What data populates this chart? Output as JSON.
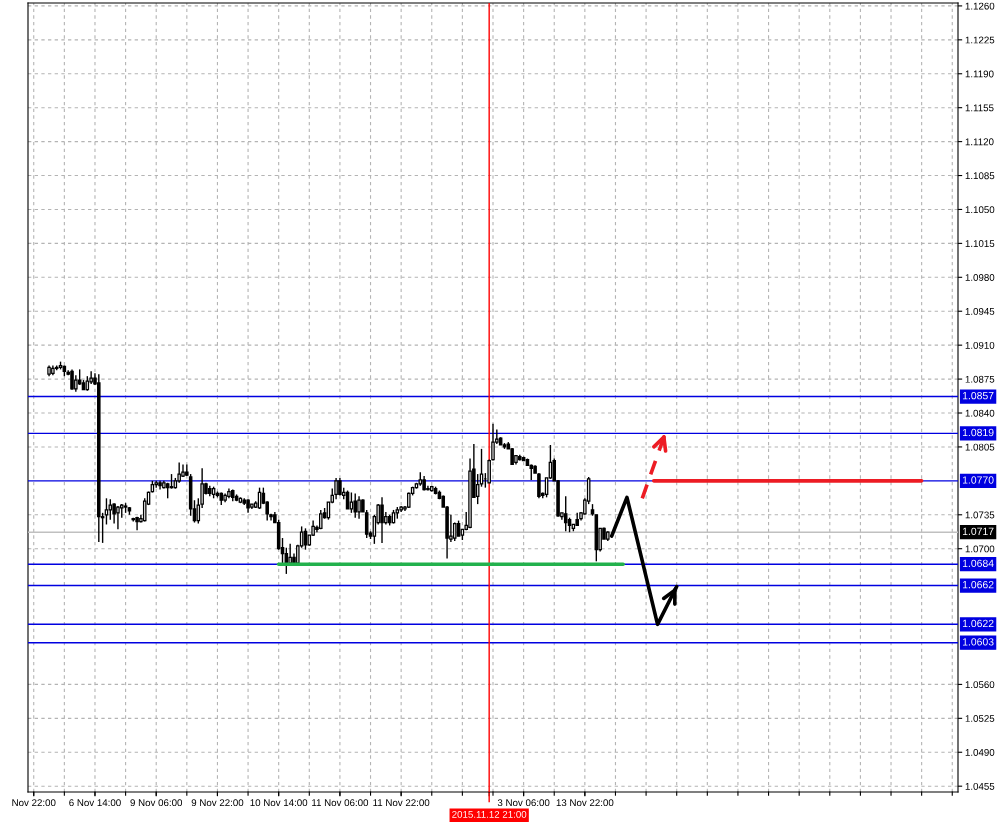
{
  "chart_data": {
    "type": "candlestick",
    "color": "#000000",
    "categories": [
      null,
      "Nov 22:00",
      null,
      null,
      null,
      null,
      null,
      null,
      null,
      null,
      null,
      null,
      null,
      null,
      null,
      null,
      null,
      "6 Nov 14:00",
      null,
      null,
      null,
      null,
      null,
      null,
      null,
      null,
      null,
      null,
      null,
      null,
      null,
      null,
      null,
      "9 Nov 06:00",
      null,
      null,
      null,
      null,
      null,
      null,
      null,
      null,
      null,
      null,
      null,
      null,
      null,
      null,
      null,
      "9 Nov 22:00",
      null,
      null,
      null,
      null,
      null,
      null,
      null,
      null,
      null,
      null,
      null,
      null,
      null,
      null,
      null,
      "10 Nov 14:00",
      null,
      null,
      null,
      null,
      null,
      null,
      null,
      null,
      null,
      null,
      null,
      null,
      null,
      null,
      null,
      "11 Nov 06:00",
      null,
      null,
      null,
      null,
      null,
      null,
      null,
      null,
      null,
      null,
      null,
      null,
      null,
      null,
      null,
      "11 Nov 22:00",
      null,
      null,
      null,
      null,
      null,
      null,
      null,
      null,
      null,
      null,
      null,
      null,
      null,
      null,
      null,
      null,
      null,
      null,
      null,
      null,
      null,
      null,
      "2015.11.12 21:00",
      null,
      null,
      null,
      null,
      null,
      null,
      null,
      null,
      "3 Nov 06:00",
      null,
      null,
      null,
      null,
      null,
      null,
      null,
      null,
      null,
      null,
      null,
      null,
      null,
      null,
      null,
      "13 Nov 22:00",
      null,
      null,
      null,
      null,
      null,
      null,
      null,
      null,
      null,
      null,
      null,
      null,
      null,
      null,
      null,
      null,
      null,
      null,
      null,
      null,
      null,
      null,
      null,
      null,
      null,
      null,
      null,
      null,
      null,
      null,
      null,
      null,
      null,
      null,
      null,
      null,
      null,
      null,
      null,
      null,
      null,
      null,
      null,
      null,
      null,
      null,
      null,
      null,
      null,
      null,
      null,
      null,
      null,
      null,
      null,
      null,
      null,
      null,
      null,
      null,
      null,
      null,
      null,
      null,
      null,
      null,
      null,
      null,
      null,
      null,
      null,
      null,
      null,
      null,
      null,
      null,
      null,
      null,
      null,
      null,
      null,
      null,
      null,
      null,
      null,
      null,
      null,
      null,
      null,
      null,
      null,
      null,
      null,
      null,
      null,
      null,
      null
    ],
    "ohlc": [
      null,
      null,
      null,
      null,
      null,
      [
        1.088,
        1.0889,
        1.0878,
        1.0887
      ],
      [
        1.0881,
        1.0889,
        1.0879,
        1.0886
      ],
      [
        1.0886,
        1.0889,
        1.0884,
        1.0887
      ],
      [
        1.0887,
        1.0893,
        1.0885,
        1.0889
      ],
      [
        1.0888,
        1.0889,
        1.0878,
        1.0883
      ],
      [
        1.0882,
        1.0884,
        1.0879,
        1.088
      ],
      [
        1.0883,
        1.0885,
        1.0864,
        1.0865
      ],
      [
        1.0865,
        1.0879,
        1.0862,
        1.0874
      ],
      [
        1.0874,
        1.0885,
        1.0869,
        1.087
      ],
      [
        1.0871,
        1.0874,
        1.0864,
        1.0864
      ],
      [
        1.0864,
        1.0878,
        1.0863,
        1.0873
      ],
      [
        1.0872,
        1.0883,
        1.087,
        1.0876
      ],
      [
        1.0876,
        1.0881,
        1.0869,
        1.087
      ],
      [
        1.0871,
        1.088,
        1.0707,
        1.0733
      ],
      [
        1.0733,
        1.0737,
        1.0706,
        1.0732
      ],
      [
        1.0735,
        1.0752,
        1.0725,
        1.074
      ],
      [
        1.074,
        1.0751,
        1.073,
        1.0745
      ],
      [
        1.0746,
        1.0747,
        1.0726,
        1.0736
      ],
      [
        1.0737,
        1.0744,
        1.072,
        1.0743
      ],
      [
        1.0742,
        1.0746,
        1.0732,
        1.0745
      ],
      [
        1.0744,
        1.0747,
        1.0737,
        1.0743
      ],
      [
        1.0742,
        1.0743,
        1.0735,
        1.0739
      ],
      [
        1.0731,
        1.0732,
        1.0728,
        1.073
      ],
      [
        1.0732,
        1.0733,
        1.0719,
        1.0728
      ],
      [
        1.0728,
        1.0735,
        1.0727,
        1.0731
      ],
      [
        1.0729,
        1.0752,
        1.0728,
        1.0749
      ],
      [
        1.0746,
        1.0759,
        1.0745,
        1.0758
      ],
      [
        1.0759,
        1.077,
        1.0758,
        1.0766
      ],
      [
        1.0766,
        1.077,
        1.0763,
        1.0768
      ],
      [
        1.0768,
        1.077,
        1.0761,
        1.0765
      ],
      [
        1.0763,
        1.077,
        1.0762,
        1.0768
      ],
      [
        1.0767,
        1.0768,
        1.0752,
        1.0763
      ],
      [
        1.0764,
        1.0777,
        1.0762,
        1.0763
      ],
      [
        1.0763,
        1.0773,
        1.0762,
        1.077
      ],
      [
        1.077,
        1.0789,
        1.0768,
        1.0777
      ],
      [
        1.0775,
        1.0787,
        1.0774,
        1.0779
      ],
      [
        1.0779,
        1.0787,
        1.0775,
        1.0776
      ],
      [
        1.0774,
        1.0777,
        1.0734,
        1.0741
      ],
      [
        1.0741,
        1.075,
        1.0727,
        1.0729
      ],
      [
        1.0729,
        1.0752,
        1.0726,
        1.0745
      ],
      [
        1.0746,
        1.0783,
        1.0742,
        1.0767
      ],
      [
        1.0767,
        1.0768,
        1.0756,
        1.0757
      ],
      [
        1.0762,
        1.0765,
        1.0754,
        1.0757
      ],
      [
        1.0756,
        1.0764,
        1.0752,
        1.0762
      ],
      [
        1.0757,
        1.0759,
        1.0753,
        1.0755
      ],
      [
        1.0757,
        1.0758,
        1.0745,
        1.075
      ],
      [
        1.075,
        1.0757,
        1.0748,
        1.0755
      ],
      [
        1.0754,
        1.0762,
        1.0752,
        1.0759
      ],
      [
        1.076,
        1.0761,
        1.0749,
        1.0753
      ],
      [
        1.0754,
        1.0756,
        1.0749,
        1.075
      ],
      [
        1.0748,
        1.0753,
        1.0747,
        1.0752
      ],
      [
        1.075,
        1.0752,
        1.0745,
        1.0747
      ],
      [
        1.075,
        1.0751,
        1.0737,
        1.0742
      ],
      [
        1.0743,
        1.0746,
        1.0741,
        1.0746
      ],
      [
        1.0743,
        1.0749,
        1.0742,
        1.0747
      ],
      [
        1.0742,
        1.0763,
        1.0741,
        1.0758
      ],
      [
        1.0757,
        1.0763,
        1.0746,
        1.0747
      ],
      [
        1.0748,
        1.0749,
        1.0729,
        1.0736
      ],
      [
        1.0735,
        1.0736,
        1.0729,
        1.0733
      ],
      [
        1.0735,
        1.0738,
        1.0727,
        1.0727
      ],
      [
        1.0727,
        1.073,
        1.0699,
        1.07
      ],
      [
        1.0701,
        1.0711,
        1.0685,
        1.0695
      ],
      [
        1.0695,
        1.0701,
        1.0674,
        1.0685
      ],
      [
        1.0685,
        1.0705,
        1.0685,
        1.0691
      ],
      [
        1.0691,
        1.0695,
        1.0684,
        1.0685
      ],
      [
        1.0685,
        1.0704,
        1.0684,
        1.0703
      ],
      [
        1.0703,
        1.0723,
        1.0701,
        1.0717
      ],
      [
        1.0718,
        1.0721,
        1.0699,
        1.0704
      ],
      [
        1.0704,
        1.0714,
        1.0703,
        1.0714
      ],
      [
        1.0714,
        1.0729,
        1.0713,
        1.0723
      ],
      [
        1.0722,
        1.0724,
        1.0717,
        1.072
      ],
      [
        1.0721,
        1.074,
        1.072,
        1.0736
      ],
      [
        1.0737,
        1.0742,
        1.0731,
        1.0732
      ],
      [
        1.0732,
        1.0748,
        1.073,
        1.0748
      ],
      [
        1.0748,
        1.0762,
        1.0747,
        1.0755
      ],
      [
        1.0756,
        1.0773,
        1.0751,
        1.077
      ],
      [
        1.077,
        1.0773,
        1.0755,
        1.0756
      ],
      [
        1.0755,
        1.0763,
        1.0751,
        1.0758
      ],
      [
        1.0758,
        1.076,
        1.0741,
        1.0741
      ],
      [
        1.0741,
        1.0758,
        1.0737,
        1.0748
      ],
      [
        1.0749,
        1.0757,
        1.0732,
        1.0738
      ],
      [
        1.0738,
        1.0754,
        1.0731,
        1.075
      ],
      [
        1.075,
        1.0751,
        1.0738,
        1.0738
      ],
      [
        1.0737,
        1.074,
        1.0711,
        1.0715
      ],
      [
        1.0716,
        1.0718,
        1.071,
        1.0713
      ],
      [
        1.0713,
        1.0735,
        1.0705,
        1.0733
      ],
      [
        1.0727,
        1.0746,
        1.0725,
        1.0745
      ],
      [
        1.0745,
        1.0753,
        1.0706,
        1.0727
      ],
      [
        1.0727,
        1.0738,
        1.0725,
        1.0733
      ],
      [
        1.0733,
        1.0735,
        1.0724,
        1.0727
      ],
      [
        1.0727,
        1.074,
        1.0726,
        1.0737
      ],
      [
        1.0737,
        1.0743,
        1.0731,
        1.074
      ],
      [
        1.074,
        1.0744,
        1.0738,
        1.0743
      ],
      [
        1.0741,
        1.0744,
        1.0739,
        1.0743
      ],
      [
        1.0743,
        1.0758,
        1.0742,
        1.0757
      ],
      [
        1.0757,
        1.0764,
        1.0755,
        1.0763
      ],
      [
        1.0763,
        1.0768,
        1.0762,
        1.0767
      ],
      [
        1.0767,
        1.0779,
        1.0765,
        1.0771
      ],
      [
        1.0771,
        1.0775,
        1.076,
        1.0761
      ],
      [
        1.0762,
        1.0765,
        1.076,
        1.0761
      ],
      [
        1.076,
        1.0765,
        1.0759,
        1.0764
      ],
      [
        1.0762,
        1.0764,
        1.0756,
        1.0757
      ],
      [
        1.0758,
        1.076,
        1.0751,
        1.0752
      ],
      [
        1.0754,
        1.0755,
        1.0743,
        1.0743
      ],
      [
        1.0743,
        1.0744,
        1.069,
        1.0711
      ],
      [
        1.071,
        1.0735,
        1.0707,
        1.0713
      ],
      [
        1.0711,
        1.0727,
        1.0708,
        1.0726
      ],
      [
        1.0726,
        1.0729,
        1.0713,
        1.0713
      ],
      [
        1.0714,
        1.072,
        1.0709,
        1.072
      ],
      [
        1.072,
        1.0738,
        1.0719,
        1.0724
      ],
      [
        1.0722,
        1.0793,
        1.0721,
        1.078
      ],
      [
        1.0782,
        1.0808,
        1.0753,
        1.0753
      ],
      [
        1.0754,
        1.0777,
        1.0746,
        1.0766
      ],
      [
        1.0767,
        1.0803,
        1.0764,
        1.0777
      ],
      [
        1.0772,
        1.0778,
        1.0763,
        1.0772
      ],
      [
        1.0768,
        1.0792,
        1.0768,
        1.0791
      ],
      [
        1.0792,
        1.0829,
        1.0791,
        1.081
      ],
      [
        1.081,
        1.0823,
        1.0808,
        1.0813
      ],
      [
        1.0814,
        1.0815,
        1.0807,
        1.0807
      ],
      [
        1.0807,
        1.0809,
        1.0803,
        1.0805
      ],
      [
        1.0808,
        1.081,
        1.0803,
        1.0803
      ],
      [
        1.0803,
        1.0804,
        1.0787,
        1.0787
      ],
      [
        1.0789,
        1.0796,
        1.0787,
        1.0796
      ],
      [
        1.0795,
        1.0797,
        1.0791,
        1.0792
      ],
      [
        1.0794,
        1.0795,
        1.0791,
        1.0791
      ],
      [
        1.0792,
        1.0793,
        1.0786,
        1.0786
      ],
      [
        1.0786,
        1.0787,
        1.0771,
        1.0783
      ],
      [
        1.0785,
        1.0786,
        1.0778,
        1.0778
      ],
      [
        1.0777,
        1.0778,
        1.0752,
        1.0754
      ],
      [
        1.0757,
        1.0758,
        1.0752,
        1.0755
      ],
      [
        1.0756,
        1.0773,
        1.0753,
        1.0773
      ],
      [
        1.0773,
        1.0807,
        1.0772,
        1.0789
      ],
      [
        1.0791,
        1.0793,
        1.077,
        1.077
      ],
      [
        1.077,
        1.0771,
        1.0733,
        1.0734
      ],
      [
        1.0733,
        1.0737,
        1.073,
        1.0737
      ],
      [
        1.0736,
        1.0754,
        1.0718,
        1.0727
      ],
      [
        1.073,
        1.0732,
        1.0717,
        1.0724
      ],
      [
        1.0721,
        1.0725,
        1.0718,
        1.0725
      ],
      [
        1.073,
        1.0737,
        1.0724,
        1.0724
      ],
      [
        1.0731,
        1.0738,
        1.0729,
        1.0737
      ],
      [
        1.0736,
        1.0752,
        1.0735,
        1.075
      ],
      [
        1.0749,
        1.0774,
        1.0746,
        1.0772
      ],
      [
        1.074,
        1.0746,
        1.0734,
        1.0736
      ],
      [
        1.0735,
        1.0735,
        1.0687,
        1.0699
      ],
      [
        1.0699,
        1.0721,
        1.0697,
        1.0721
      ],
      [
        1.0721,
        1.0722,
        1.071,
        1.071
      ],
      [
        1.071,
        1.0718,
        1.0708,
        1.0717
      ],
      null,
      null,
      null,
      null,
      null,
      null,
      null,
      null,
      null,
      null,
      null,
      null,
      null,
      null,
      null,
      null,
      null,
      null,
      null,
      null,
      null,
      null,
      null,
      null,
      null,
      null,
      null,
      null,
      null,
      null,
      null,
      null,
      null,
      null,
      null,
      null,
      null,
      null,
      null,
      null,
      null,
      null,
      null,
      null,
      null,
      null,
      null,
      null,
      null,
      null,
      null,
      null,
      null,
      null,
      null,
      null,
      null,
      null,
      null,
      null,
      null,
      null,
      null,
      null,
      null,
      null,
      null,
      null,
      null,
      null,
      null,
      null,
      null,
      null,
      null,
      null,
      null,
      null,
      null,
      null,
      null,
      null,
      null,
      null,
      null,
      null,
      null,
      null,
      null,
      null,
      null
    ],
    "series": [
      {
        "type": "line",
        "color": "#22b14c",
        "values": [
          null,
          null,
          null,
          null,
          null,
          null,
          null,
          null,
          null,
          null,
          null,
          null,
          null,
          null,
          null,
          null,
          null,
          null,
          null,
          null,
          null,
          null,
          null,
          null,
          null,
          null,
          null,
          null,
          null,
          null,
          null,
          null,
          null,
          null,
          null,
          null,
          null,
          null,
          null,
          null,
          null,
          null,
          null,
          null,
          null,
          null,
          null,
          null,
          null,
          null,
          null,
          null,
          null,
          null,
          null,
          null,
          null,
          null,
          null,
          null,
          null,
          null,
          null,
          null,
          null,
          1.0684,
          null,
          null,
          null,
          null,
          null,
          null,
          null,
          null,
          null,
          null,
          null,
          null,
          null,
          null,
          null,
          null,
          null,
          null,
          null,
          null,
          null,
          null,
          null,
          null,
          null,
          null,
          null,
          null,
          null,
          null,
          null,
          null,
          null,
          null,
          null,
          null,
          null,
          null,
          null,
          null,
          null,
          null,
          null,
          null,
          null,
          null,
          null,
          null,
          null,
          null,
          null,
          null,
          null,
          null,
          null,
          null,
          null,
          null,
          null,
          null,
          null,
          null,
          null,
          null,
          null,
          null,
          null,
          null,
          null,
          null,
          null,
          null,
          null,
          null,
          null,
          null,
          null,
          null,
          null,
          null,
          null,
          null,
          null,
          null,
          null,
          null,
          null,
          null,
          null,
          1.0684,
          null,
          null,
          null,
          null,
          null,
          null,
          null,
          null,
          null,
          null,
          null,
          null,
          null,
          null,
          null,
          null,
          null,
          null,
          null,
          null,
          null,
          null,
          null,
          null,
          null,
          null,
          null,
          null,
          null,
          null,
          null,
          null,
          null,
          null,
          null,
          null,
          null,
          null,
          null,
          null,
          null,
          null,
          null,
          null,
          null,
          null,
          null,
          null,
          null,
          null,
          null,
          null,
          null,
          null,
          null,
          null,
          null,
          null,
          null,
          null,
          null,
          null,
          null,
          null,
          null,
          null,
          null,
          null,
          null,
          null,
          null,
          null,
          null,
          null,
          null,
          null,
          null,
          null,
          null,
          null,
          null,
          null,
          null,
          null,
          null,
          null,
          null
        ]
      },
      {
        "type": "line",
        "color": "#ed1c24",
        "values": [
          null,
          null,
          null,
          null,
          null,
          null,
          null,
          null,
          null,
          null,
          null,
          null,
          null,
          null,
          null,
          null,
          null,
          null,
          null,
          null,
          null,
          null,
          null,
          null,
          null,
          null,
          null,
          null,
          null,
          null,
          null,
          null,
          null,
          null,
          null,
          null,
          null,
          null,
          null,
          null,
          null,
          null,
          null,
          null,
          null,
          null,
          null,
          null,
          null,
          null,
          null,
          null,
          null,
          null,
          null,
          null,
          null,
          null,
          null,
          null,
          null,
          null,
          null,
          null,
          null,
          null,
          null,
          null,
          null,
          null,
          null,
          null,
          null,
          null,
          null,
          null,
          null,
          null,
          null,
          null,
          null,
          null,
          null,
          null,
          null,
          null,
          null,
          null,
          null,
          null,
          null,
          null,
          null,
          null,
          null,
          null,
          null,
          null,
          null,
          null,
          null,
          null,
          null,
          null,
          null,
          null,
          null,
          null,
          null,
          null,
          null,
          null,
          null,
          null,
          null,
          null,
          null,
          null,
          null,
          null,
          null,
          null,
          null,
          null,
          null,
          null,
          null,
          null,
          null,
          null,
          null,
          null,
          null,
          null,
          null,
          null,
          null,
          null,
          null,
          null,
          null,
          null,
          null,
          null,
          null,
          null,
          null,
          null,
          null,
          null,
          null,
          null,
          null,
          null,
          null,
          null,
          null,
          null,
          null,
          null,
          null,
          null,
          null,
          1.077,
          null,
          null,
          null,
          null,
          null,
          null,
          null,
          null,
          null,
          null,
          null,
          null,
          null,
          null,
          null,
          null,
          null,
          null,
          null,
          null,
          null,
          null,
          null,
          null,
          null,
          null,
          null,
          null,
          null,
          null,
          null,
          null,
          null,
          null,
          null,
          null,
          null,
          null,
          null,
          null,
          null,
          null,
          null,
          null,
          null,
          null,
          null,
          null,
          null,
          null,
          null,
          null,
          null,
          null,
          null,
          null,
          null,
          null,
          null,
          null,
          null,
          null,
          null,
          null,
          null,
          null,
          null,
          null,
          null,
          1.077,
          null,
          null,
          null,
          null,
          null,
          null,
          null,
          null,
          null
        ]
      },
      {
        "type": "line",
        "color": "#000000",
        "line_style": "solid",
        "values": [
          null,
          null,
          null,
          null,
          null,
          null,
          null,
          null,
          null,
          null,
          null,
          null,
          null,
          null,
          null,
          null,
          null,
          null,
          null,
          null,
          null,
          null,
          null,
          null,
          null,
          null,
          null,
          null,
          null,
          null,
          null,
          null,
          null,
          null,
          null,
          null,
          null,
          null,
          null,
          null,
          null,
          null,
          null,
          null,
          null,
          null,
          null,
          null,
          null,
          null,
          null,
          null,
          null,
          null,
          null,
          null,
          null,
          null,
          null,
          null,
          null,
          null,
          null,
          null,
          null,
          null,
          null,
          null,
          null,
          null,
          null,
          null,
          null,
          null,
          null,
          null,
          null,
          null,
          null,
          null,
          null,
          null,
          null,
          null,
          null,
          null,
          null,
          null,
          null,
          null,
          null,
          null,
          null,
          null,
          null,
          null,
          null,
          null,
          null,
          null,
          null,
          null,
          null,
          null,
          null,
          null,
          null,
          null,
          null,
          null,
          null,
          null,
          null,
          null,
          null,
          null,
          null,
          null,
          null,
          null,
          null,
          null,
          null,
          null,
          null,
          null,
          null,
          null,
          null,
          null,
          null,
          null,
          null,
          null,
          null,
          null,
          null,
          null,
          null,
          null,
          null,
          null,
          null,
          null,
          null,
          null,
          null,
          null,
          null,
          null,
          null,
          null,
          1.0713,
          null,
          null,
          null,
          1.0753,
          null,
          null,
          null,
          null,
          null,
          null,
          null,
          1.0622,
          null,
          null,
          null,
          null,
          1.0661,
          null,
          null,
          null,
          null,
          null,
          null,
          null,
          null,
          null,
          null,
          null,
          null,
          null,
          null,
          null,
          null,
          null,
          null,
          null,
          null,
          null,
          null,
          null,
          null,
          null,
          null,
          null,
          null,
          null,
          null,
          null,
          null,
          null,
          null,
          null,
          null,
          null,
          null,
          null,
          null,
          null,
          null,
          null,
          null,
          null,
          null,
          null,
          null,
          null,
          null,
          null,
          null,
          null,
          null,
          null,
          null,
          null,
          null,
          null,
          null,
          null,
          null,
          null,
          null,
          null,
          null,
          null,
          null,
          null,
          null,
          null,
          null,
          null
        ]
      },
      {
        "type": "line",
        "color": "#ed1c24",
        "line_style": "dashed",
        "values": [
          null,
          null,
          null,
          null,
          null,
          null,
          null,
          null,
          null,
          null,
          null,
          null,
          null,
          null,
          null,
          null,
          null,
          null,
          null,
          null,
          null,
          null,
          null,
          null,
          null,
          null,
          null,
          null,
          null,
          null,
          null,
          null,
          null,
          null,
          null,
          null,
          null,
          null,
          null,
          null,
          null,
          null,
          null,
          null,
          null,
          null,
          null,
          null,
          null,
          null,
          null,
          null,
          null,
          null,
          null,
          null,
          null,
          null,
          null,
          null,
          null,
          null,
          null,
          null,
          null,
          null,
          null,
          null,
          null,
          null,
          null,
          null,
          null,
          null,
          null,
          null,
          null,
          null,
          null,
          null,
          null,
          null,
          null,
          null,
          null,
          null,
          null,
          null,
          null,
          null,
          null,
          null,
          null,
          null,
          null,
          null,
          null,
          null,
          null,
          null,
          null,
          null,
          null,
          null,
          null,
          null,
          null,
          null,
          null,
          null,
          null,
          null,
          null,
          null,
          null,
          null,
          null,
          null,
          null,
          null,
          null,
          null,
          null,
          null,
          null,
          null,
          null,
          null,
          null,
          null,
          null,
          null,
          null,
          null,
          null,
          null,
          null,
          null,
          null,
          null,
          null,
          null,
          null,
          null,
          null,
          null,
          null,
          null,
          null,
          null,
          null,
          null,
          null,
          null,
          null,
          null,
          null,
          null,
          null,
          null,
          1.0752,
          null,
          null,
          null,
          null,
          null,
          1.0819,
          null,
          null,
          null,
          null,
          null,
          null,
          null,
          null,
          null,
          null,
          null,
          null,
          null,
          null,
          null,
          null,
          null,
          null,
          null,
          null,
          null,
          null,
          null,
          null,
          null,
          null,
          null,
          null,
          null,
          null,
          null,
          null,
          null,
          null,
          null,
          null,
          null,
          null,
          null,
          null,
          null,
          null,
          null,
          null,
          null,
          null,
          null,
          null,
          null,
          null,
          null,
          null,
          null,
          null,
          null,
          null,
          null,
          null,
          null,
          null,
          null,
          null,
          null,
          null,
          null,
          null,
          null,
          null,
          null,
          null,
          null,
          null,
          null,
          null,
          null,
          null
        ]
      }
    ],
    "ref_lines": [
      {
        "axis": "y",
        "value": 1.0857,
        "label": "1.0857",
        "color": "#0000e0"
      },
      {
        "axis": "y",
        "value": 1.0819,
        "label": "1.0819",
        "color": "#0000e0"
      },
      {
        "axis": "y",
        "value": 1.077,
        "label": "1.0770",
        "color": "#0000e0"
      },
      {
        "axis": "y",
        "value": 1.0717,
        "label": "1.0717",
        "color": "#c0c0c0"
      },
      {
        "axis": "y",
        "value": 1.0684,
        "label": "1.0684",
        "color": "#0000e0"
      },
      {
        "axis": "y",
        "value": 1.0662,
        "label": "1.0662",
        "color": "#0000e0"
      },
      {
        "axis": "y",
        "value": 1.0622,
        "label": "1.0622",
        "color": "#0000e0"
      },
      {
        "axis": "y",
        "value": 1.0603,
        "label": "1.0603",
        "color": "#0000e0"
      },
      {
        "axis": "x",
        "value": "2015.11.12 21:00",
        "color": "#ff0000"
      }
    ],
    "ylim": [
      1.0449,
      1.1263
    ],
    "yticks": [
      1.0455,
      {
        "value": 1.049,
        "label": "1.0490"
      },
      1.0525,
      {
        "value": 1.056,
        "label": "1.0560"
      },
      {
        "value": 1.07,
        "label": "1.0700"
      },
      1.0735,
      1.0805,
      {
        "value": 1.084,
        "label": "1.0840"
      },
      1.0875,
      {
        "value": 1.091,
        "label": "1.0910"
      },
      1.0945,
      {
        "value": 1.098,
        "label": "1.0980"
      },
      1.1015,
      {
        "value": 1.105,
        "label": "1.1050"
      },
      1.1085,
      {
        "value": 1.112,
        "label": "1.1120"
      },
      1.1155,
      {
        "value": 1.119,
        "label": "1.1190"
      },
      1.1225,
      {
        "value": 1.126,
        "label": "1.1260"
      }
    ],
    "grid": true
  }
}
